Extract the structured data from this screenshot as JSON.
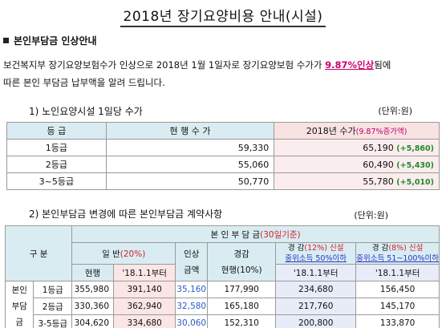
{
  "title": "2018년 장기요양비용 안내(시설)",
  "section": "본인부담금 인상안내",
  "intro": {
    "line1_pre": "보건복지부 장기요양보험수가 인상으로 2018년 1월 1일자로 장기요양보험 수가가 ",
    "line1_highlight": "9.87%인상",
    "line1_post": "됨에",
    "line2": "따른 본인 부담금 납부액을 알려 드립니다."
  },
  "table1": {
    "heading": "1) 노인요양시설 1일당 수가",
    "unit": "(단위:원)",
    "headers": {
      "grade": "등  급",
      "current": "현 행 수 가",
      "new_pre": "2018년 수가",
      "new_note": "(9.87%증가액)"
    },
    "rows": [
      {
        "grade": "1등급",
        "current": "59,330",
        "new": "65,190",
        "inc": "(+5,860)"
      },
      {
        "grade": "2등급",
        "current": "55,060",
        "new": "60,490",
        "inc": "(+5,430)"
      },
      {
        "grade": "3~5등급",
        "current": "50,770",
        "new": "55,780",
        "inc": "(+5,010)"
      }
    ]
  },
  "table2": {
    "heading": "2) 본인부담금 변경에 따른 본인부담금 계약사항",
    "unit": "(단위:원)",
    "division": "구   분",
    "main_header": {
      "text": "본 인 부 담 금",
      "note": "(30일기준)"
    },
    "general": {
      "pre": "일 반",
      "note": "(20%)"
    },
    "increase": {
      "l1": "인상",
      "l2": "금액"
    },
    "reduced_current": {
      "l1": "경감",
      "l2": "현행(10%)"
    },
    "reduced1": {
      "pre": "경 감",
      "note": "(12%)",
      "post": " 신설",
      "sub": "중위소득 50%이하"
    },
    "reduced2": {
      "pre": "경 감",
      "note": "(8%)",
      "post": " 신설",
      "sub": "중위소득 51~100%이하"
    },
    "current_label": "현행",
    "from_date": "'18.1.1부터",
    "row_group": [
      "본인",
      "부담",
      "금"
    ],
    "rows": [
      {
        "grade": "1등급",
        "current": "355,980",
        "from": "391,140",
        "increase": "35,160",
        "reduced": "177,990",
        "r1": "234,680",
        "r2": "156,450"
      },
      {
        "grade": "2등급",
        "current": "330,360",
        "from": "362,940",
        "increase": "32,580",
        "reduced": "165,180",
        "r1": "217,760",
        "r2": "145,170"
      },
      {
        "grade": "3-5등급",
        "current": "304,620",
        "from": "334,680",
        "increase": "30,060",
        "reduced": "152,310",
        "r1": "200,800",
        "r2": "133,870"
      }
    ]
  }
}
